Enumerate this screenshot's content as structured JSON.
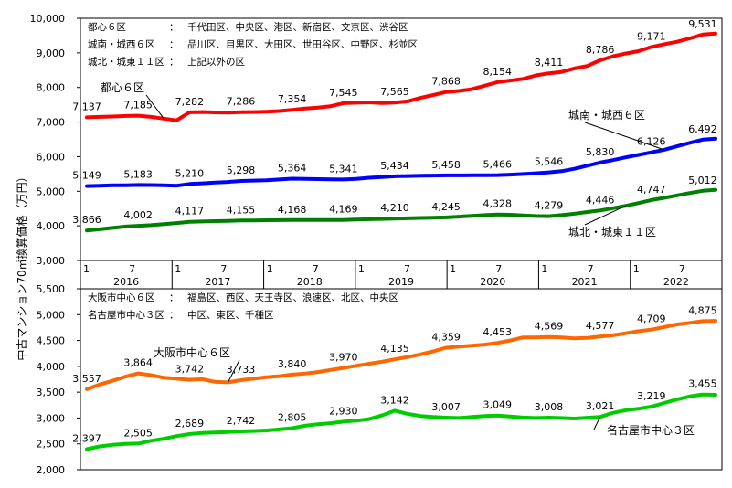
{
  "y_axis_label": "中古マンション70㎡換算価格（万円）",
  "timeline": {
    "month_ticks": [
      "1",
      "7",
      "1",
      "7",
      "1",
      "7",
      "1",
      "7",
      "1",
      "7",
      "1",
      "7",
      "1",
      "7"
    ],
    "years": [
      "2016",
      "2017",
      "2018",
      "2019",
      "2020",
      "2021",
      "2022"
    ]
  },
  "chart_data": [
    {
      "type": "line",
      "panel": "top",
      "ylim": [
        3000,
        10000
      ],
      "yticks": [
        "3,000",
        "4,000",
        "5,000",
        "6,000",
        "7,000",
        "8,000",
        "9,000",
        "10,000"
      ],
      "legend_notes": [
        {
          "region": "都心６区",
          "colon": "：",
          "wards": "千代田区、中央区、港区、新宿区、文京区、渋谷区"
        },
        {
          "region": "城南・城西６区",
          "colon": "：",
          "wards": "品川区、目黒区、大田区、世田谷区、中野区、杉並区"
        },
        {
          "region": "城北・城東１１区",
          "colon": "：",
          "wards": "上記以外の区"
        }
      ],
      "series": [
        {
          "name": "都心６区",
          "color": "#ff0000",
          "values": [
            7137,
            7150,
            7160,
            7175,
            7185,
            7150,
            7100,
            7050,
            7282,
            7290,
            7280,
            7270,
            7286,
            7290,
            7300,
            7320,
            7354,
            7390,
            7420,
            7460,
            7545,
            7560,
            7570,
            7550,
            7565,
            7600,
            7700,
            7780,
            7868,
            7900,
            7950,
            8050,
            8154,
            8200,
            8250,
            8350,
            8411,
            8450,
            8550,
            8620,
            8786,
            8900,
            8980,
            9050,
            9171,
            9250,
            9320,
            9420,
            9531,
            9560
          ]
        },
        {
          "name": "城南・城西６区",
          "color": "#0000ff",
          "values": [
            5149,
            5160,
            5170,
            5175,
            5183,
            5180,
            5170,
            5160,
            5210,
            5230,
            5250,
            5270,
            5298,
            5310,
            5320,
            5340,
            5364,
            5360,
            5350,
            5345,
            5341,
            5360,
            5390,
            5410,
            5434,
            5440,
            5450,
            5455,
            5458,
            5460,
            5462,
            5464,
            5466,
            5480,
            5500,
            5520,
            5546,
            5580,
            5650,
            5740,
            5830,
            5900,
            5980,
            6050,
            6126,
            6200,
            6300,
            6400,
            6492,
            6520
          ]
        },
        {
          "name": "城北・城東１１区",
          "color": "#008000",
          "values": [
            3866,
            3900,
            3940,
            3980,
            4002,
            4020,
            4050,
            4080,
            4117,
            4125,
            4135,
            4145,
            4155,
            4158,
            4161,
            4164,
            4168,
            4168,
            4168,
            4169,
            4169,
            4180,
            4190,
            4200,
            4210,
            4218,
            4228,
            4237,
            4245,
            4265,
            4290,
            4310,
            4328,
            4320,
            4300,
            4285,
            4279,
            4310,
            4350,
            4400,
            4446,
            4510,
            4580,
            4660,
            4747,
            4810,
            4880,
            4950,
            5012,
            5040
          ]
        }
      ],
      "series_labels": [
        {
          "series": 0,
          "text": "都心６区"
        },
        {
          "series": 1,
          "text": "城南・城西６区"
        },
        {
          "series": 2,
          "text": "城北・城東１１区"
        }
      ],
      "data_labels": [
        {
          "series": 0,
          "points": [
            {
              "i": 0,
              "text": "7,137"
            },
            {
              "i": 4,
              "text": "7,185"
            },
            {
              "i": 8,
              "text": "7,282"
            },
            {
              "i": 12,
              "text": "7,286"
            },
            {
              "i": 16,
              "text": "7,354"
            },
            {
              "i": 20,
              "text": "7,545"
            },
            {
              "i": 24,
              "text": "7,565"
            },
            {
              "i": 28,
              "text": "7,868"
            },
            {
              "i": 32,
              "text": "8,154"
            },
            {
              "i": 36,
              "text": "8,411"
            },
            {
              "i": 40,
              "text": "8,786"
            },
            {
              "i": 44,
              "text": "9,171"
            },
            {
              "i": 48,
              "text": "9,531"
            }
          ]
        },
        {
          "series": 1,
          "points": [
            {
              "i": 0,
              "text": "5,149"
            },
            {
              "i": 4,
              "text": "5,183"
            },
            {
              "i": 8,
              "text": "5,210"
            },
            {
              "i": 12,
              "text": "5,298"
            },
            {
              "i": 16,
              "text": "5,364"
            },
            {
              "i": 20,
              "text": "5,341"
            },
            {
              "i": 24,
              "text": "5,434"
            },
            {
              "i": 28,
              "text": "5,458"
            },
            {
              "i": 32,
              "text": "5,466"
            },
            {
              "i": 36,
              "text": "5,546"
            },
            {
              "i": 40,
              "text": "5,830"
            },
            {
              "i": 44,
              "text": "6,126"
            },
            {
              "i": 48,
              "text": "6,492"
            }
          ]
        },
        {
          "series": 2,
          "points": [
            {
              "i": 0,
              "text": "3,866"
            },
            {
              "i": 4,
              "text": "4,002"
            },
            {
              "i": 8,
              "text": "4,117"
            },
            {
              "i": 12,
              "text": "4,155"
            },
            {
              "i": 16,
              "text": "4,168"
            },
            {
              "i": 20,
              "text": "4,169"
            },
            {
              "i": 24,
              "text": "4,210"
            },
            {
              "i": 28,
              "text": "4,245"
            },
            {
              "i": 32,
              "text": "4,328"
            },
            {
              "i": 36,
              "text": "4,279"
            },
            {
              "i": 40,
              "text": "4,446"
            },
            {
              "i": 44,
              "text": "4,747"
            },
            {
              "i": 48,
              "text": "5,012"
            }
          ]
        }
      ]
    },
    {
      "type": "line",
      "panel": "bottom",
      "ylim": [
        2000,
        5500
      ],
      "yticks": [
        "2,000",
        "2,500",
        "3,000",
        "3,500",
        "4,000",
        "4,500",
        "5,000",
        "5,500"
      ],
      "legend_notes": [
        {
          "region": "大阪市中心６区",
          "colon": "：",
          "wards": "福島区、西区、天王寺区、浪速区、北区、中央区"
        },
        {
          "region": "名古屋市中心３区",
          "colon": "：",
          "wards": "中区、東区、千種区"
        }
      ],
      "series": [
        {
          "name": "大阪市中心６区",
          "color": "#ff6600",
          "values": [
            3557,
            3650,
            3720,
            3800,
            3864,
            3830,
            3780,
            3760,
            3742,
            3750,
            3700,
            3690,
            3733,
            3760,
            3790,
            3810,
            3840,
            3860,
            3890,
            3930,
            3970,
            4010,
            4050,
            4090,
            4135,
            4180,
            4230,
            4290,
            4359,
            4380,
            4400,
            4420,
            4453,
            4500,
            4560,
            4560,
            4569,
            4560,
            4540,
            4550,
            4577,
            4600,
            4640,
            4680,
            4709,
            4760,
            4810,
            4840,
            4875,
            4880
          ]
        },
        {
          "name": "名古屋市中心３区",
          "color": "#00cc00",
          "values": [
            2397,
            2450,
            2480,
            2500,
            2505,
            2560,
            2600,
            2650,
            2689,
            2710,
            2720,
            2730,
            2742,
            2750,
            2760,
            2780,
            2805,
            2850,
            2880,
            2900,
            2930,
            2950,
            2980,
            3050,
            3142,
            3080,
            3040,
            3020,
            3007,
            3000,
            3020,
            3040,
            3049,
            3030,
            3010,
            3000,
            3008,
            3000,
            2990,
            3005,
            3021,
            3100,
            3150,
            3180,
            3219,
            3290,
            3360,
            3420,
            3455,
            3450
          ]
        }
      ],
      "series_labels": [
        {
          "series": 0,
          "text": "大阪市中心６区"
        },
        {
          "series": 1,
          "text": "名古屋市中心３区"
        }
      ],
      "data_labels": [
        {
          "series": 0,
          "points": [
            {
              "i": 0,
              "text": "3,557"
            },
            {
              "i": 4,
              "text": "3,864"
            },
            {
              "i": 8,
              "text": "3,742"
            },
            {
              "i": 12,
              "text": "3,733"
            },
            {
              "i": 16,
              "text": "3,840"
            },
            {
              "i": 20,
              "text": "3,970"
            },
            {
              "i": 24,
              "text": "4,135"
            },
            {
              "i": 28,
              "text": "4,359"
            },
            {
              "i": 32,
              "text": "4,453"
            },
            {
              "i": 36,
              "text": "4,569"
            },
            {
              "i": 40,
              "text": "4,577"
            },
            {
              "i": 44,
              "text": "4,709"
            },
            {
              "i": 48,
              "text": "4,875"
            }
          ]
        },
        {
          "series": 1,
          "points": [
            {
              "i": 0,
              "text": "2,397"
            },
            {
              "i": 4,
              "text": "2,505"
            },
            {
              "i": 8,
              "text": "2,689"
            },
            {
              "i": 12,
              "text": "2,742"
            },
            {
              "i": 16,
              "text": "2,805"
            },
            {
              "i": 20,
              "text": "2,930"
            },
            {
              "i": 24,
              "text": "3,142"
            },
            {
              "i": 28,
              "text": "3,007"
            },
            {
              "i": 32,
              "text": "3,049"
            },
            {
              "i": 36,
              "text": "3,008"
            },
            {
              "i": 40,
              "text": "3,021"
            },
            {
              "i": 44,
              "text": "3,219"
            },
            {
              "i": 48,
              "text": "3,455"
            }
          ]
        }
      ]
    }
  ]
}
